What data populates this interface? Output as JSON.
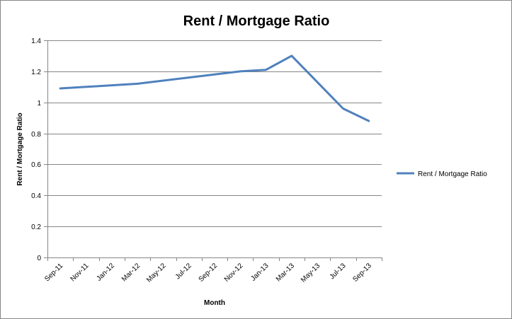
{
  "chart_data": {
    "type": "line",
    "title": "Rent / Mortgage Ratio",
    "xlabel": "Month",
    "ylabel": "Rent / Mortgage Ratio",
    "categories": [
      "Sep-11",
      "Nov-11",
      "Jan-12",
      "Mar-12",
      "May-12",
      "Jul-12",
      "Sep-12",
      "Nov-12",
      "Jan-13",
      "Mar-13",
      "May-13",
      "Jul-13",
      "Sep-13"
    ],
    "x_tick_labels": [
      "Sep-11",
      "Nov-11",
      "Jan-12",
      "Mar-12",
      "May-12",
      "Jul-12",
      "Sep-12",
      "Nov-12",
      "Jan-13",
      "Mar-13",
      "May-13",
      "Jul-13",
      "Sep-13"
    ],
    "y_tick_labels": [
      "0",
      "0.2",
      "0.4",
      "0.6",
      "0.8",
      "1",
      "1.2",
      "1.4"
    ],
    "ylim": [
      0,
      1.4
    ],
    "y_tick_values": [
      0,
      0.2,
      0.4,
      0.6,
      0.8,
      1.0,
      1.2,
      1.4
    ],
    "grid": true,
    "legend_position": "right",
    "series": [
      {
        "name": "Rent / Mortgage Ratio",
        "color": "#4F81BD",
        "points": [
          {
            "x": "Sep-11",
            "y": 1.09
          },
          {
            "x": "Jan-12",
            "y": 1.11
          },
          {
            "x": "Mar-12",
            "y": 1.12
          },
          {
            "x": "Jul-12",
            "y": 1.16
          },
          {
            "x": "Nov-12",
            "y": 1.2
          },
          {
            "x": "Jan-13",
            "y": 1.21
          },
          {
            "x": "Mar-13",
            "y": 1.3
          },
          {
            "x": "Jul-13",
            "y": 0.96
          },
          {
            "x": "Sep-13",
            "y": 0.88
          }
        ]
      }
    ]
  }
}
